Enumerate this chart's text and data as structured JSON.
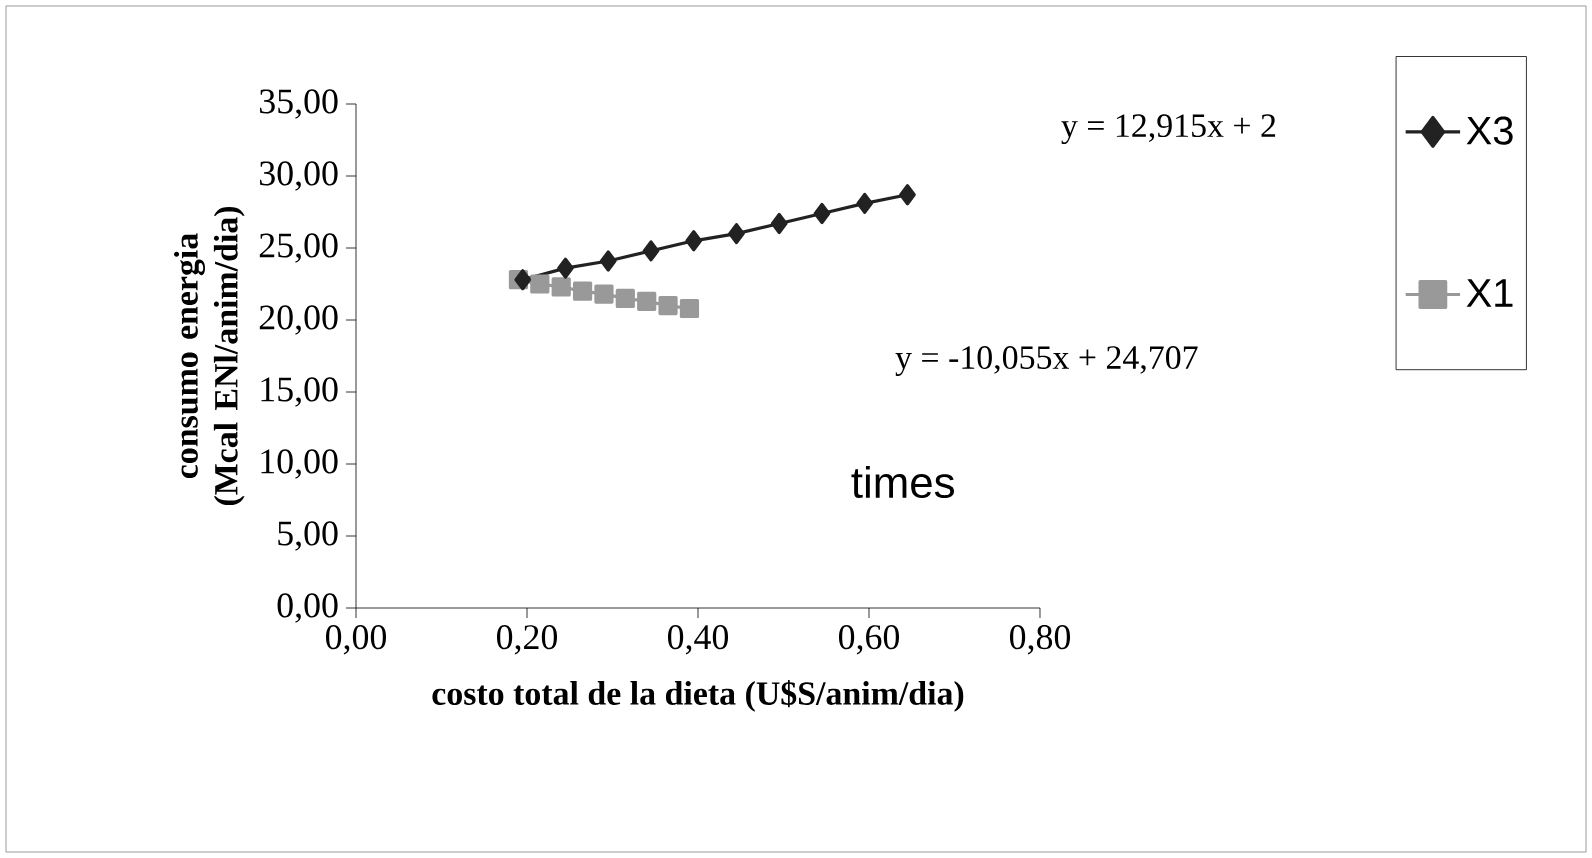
{
  "chart_data": {
    "type": "line",
    "xlabel": "costo total de la dieta (U$S/anim/dia)",
    "ylabel": "consumo energia (Mcal ENl/anim/dia)",
    "xlim": [
      0,
      0.8
    ],
    "ylim": [
      0,
      35
    ],
    "xticks": [
      {
        "value": 0,
        "label": "0,00"
      },
      {
        "value": 0.2,
        "label": "0,20"
      },
      {
        "value": 0.4,
        "label": "0,40"
      },
      {
        "value": 0.6,
        "label": "0,60"
      },
      {
        "value": 0.8,
        "label": "0,80"
      }
    ],
    "yticks": [
      {
        "value": 0,
        "label": "0,00"
      },
      {
        "value": 5,
        "label": "5,00"
      },
      {
        "value": 10,
        "label": "10,00"
      },
      {
        "value": 15,
        "label": "15,00"
      },
      {
        "value": 20,
        "label": "20,00"
      },
      {
        "value": 25,
        "label": "25,00"
      },
      {
        "value": 30,
        "label": "30,00"
      },
      {
        "value": 35,
        "label": "35,00"
      }
    ],
    "series": [
      {
        "name": "X3",
        "color": "#222222",
        "marker": "diamond",
        "x": [
          0.195,
          0.245,
          0.295,
          0.345,
          0.395,
          0.445,
          0.495,
          0.545,
          0.595,
          0.645
        ],
        "values": [
          22.8,
          23.6,
          24.1,
          24.8,
          25.5,
          26.0,
          26.7,
          27.4,
          28.1,
          28.7
        ]
      },
      {
        "name": "X1",
        "color": "#999999",
        "marker": "square",
        "x": [
          0.19,
          0.215,
          0.24,
          0.265,
          0.29,
          0.315,
          0.34,
          0.365,
          0.39
        ],
        "values": [
          22.8,
          22.5,
          22.3,
          22.0,
          21.8,
          21.5,
          21.3,
          21.0,
          20.8
        ]
      }
    ],
    "annotations": [
      "y = 12,915x + 2",
      "y = -10,055x + 24,707",
      "times"
    ],
    "legend": "right",
    "grid": false,
    "line_style": "solid"
  }
}
